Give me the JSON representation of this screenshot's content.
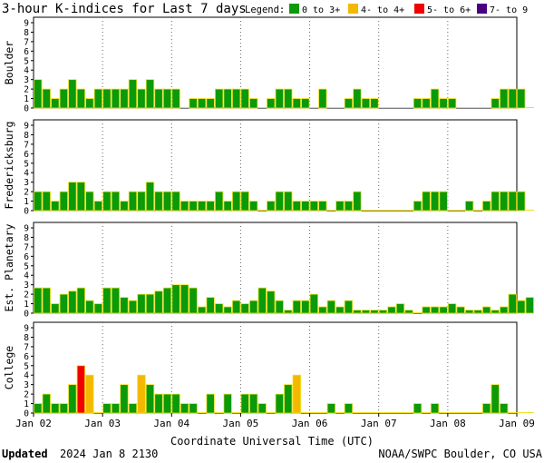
{
  "colors": {
    "quiet": "#0a9a0a",
    "active": "#f5b800",
    "storm": "#f00000",
    "severe": "#4b0082",
    "bar_outline": "#f0e020"
  },
  "header": {
    "title": "3-hour K-indices for Last 7 days",
    "legend_label": "Legend:",
    "legend": [
      {
        "label": "0 to 3+",
        "color_key": "quiet"
      },
      {
        "label": "4- to 4+",
        "color_key": "active"
      },
      {
        "label": "5- to 6+",
        "color_key": "storm"
      },
      {
        "label": "7- to 9",
        "color_key": "severe"
      }
    ]
  },
  "footer": {
    "updated_label": "Updated",
    "updated_value": "2024 Jan  8 2130",
    "credit": "NOAA/SWPC Boulder, CO USA"
  },
  "chart_data": {
    "type": "bar",
    "xlabel": "Coordinate Universal Time (UTC)",
    "x_tick_labels": [
      "Jan 02",
      "Jan 03",
      "Jan 04",
      "Jan 05",
      "Jan 06",
      "Jan 07",
      "Jan 08",
      "Jan 09"
    ],
    "ylim": [
      0,
      9
    ],
    "y_ticks": [
      0,
      1,
      2,
      3,
      4,
      5,
      6,
      7,
      8,
      9
    ],
    "bins_per_day": 8,
    "grid": "dotted",
    "series": [
      {
        "name": "Boulder",
        "values": [
          3,
          2,
          1,
          2,
          3,
          2,
          1,
          2,
          2,
          2,
          2,
          3,
          2,
          3,
          2,
          2,
          2,
          0,
          1,
          1,
          1,
          2,
          2,
          2,
          2,
          1,
          0,
          1,
          2,
          2,
          1,
          1,
          0,
          2,
          0,
          0,
          1,
          2,
          1,
          1,
          0,
          0,
          0,
          0,
          1,
          1,
          2,
          1,
          1,
          0,
          0,
          0,
          0,
          1,
          2,
          2,
          2,
          0
        ]
      },
      {
        "name": "Fredericksburg",
        "values": [
          2,
          2,
          1,
          2,
          3,
          3,
          2,
          1,
          2,
          2,
          1,
          2,
          2,
          3,
          2,
          2,
          2,
          1,
          1,
          1,
          1,
          2,
          1,
          2,
          2,
          1,
          0,
          1,
          2,
          2,
          1,
          1,
          1,
          1,
          0,
          1,
          1,
          2,
          0,
          0,
          0,
          0,
          0,
          0,
          1,
          2,
          2,
          2,
          0,
          0,
          1,
          0,
          1,
          2,
          2,
          2,
          2,
          0
        ]
      },
      {
        "name": "Est. Planetary",
        "values": [
          2.67,
          2.67,
          1,
          2,
          2.33,
          2.67,
          1.33,
          1,
          2.67,
          2.67,
          1.67,
          1.33,
          2,
          2,
          2.33,
          2.67,
          3,
          3,
          2.67,
          0.67,
          1.67,
          1,
          0.67,
          1.33,
          1,
          1.33,
          2.67,
          2.33,
          1.33,
          0.33,
          1.33,
          1.33,
          2,
          0.67,
          1.33,
          0.67,
          1.33,
          0.33,
          0.33,
          0.33,
          0.33,
          0.67,
          1,
          0.33,
          0,
          0.67,
          0.67,
          0.67,
          1,
          0.67,
          0.33,
          0.33,
          0.67,
          0.33,
          0.67,
          2,
          1.33,
          1.67
        ]
      },
      {
        "name": "College",
        "values": [
          1,
          2,
          1,
          1,
          3,
          5,
          4,
          0,
          1,
          1,
          3,
          1,
          4,
          3,
          2,
          2,
          2,
          1,
          1,
          0,
          2,
          0,
          2,
          0,
          2,
          2,
          1,
          0,
          2,
          3,
          4,
          0,
          0,
          0,
          1,
          0,
          1,
          0,
          0,
          0,
          0,
          0,
          0,
          0,
          1,
          0,
          1,
          0,
          0,
          0,
          0,
          0,
          1,
          3,
          1,
          0,
          0,
          0
        ]
      }
    ]
  }
}
